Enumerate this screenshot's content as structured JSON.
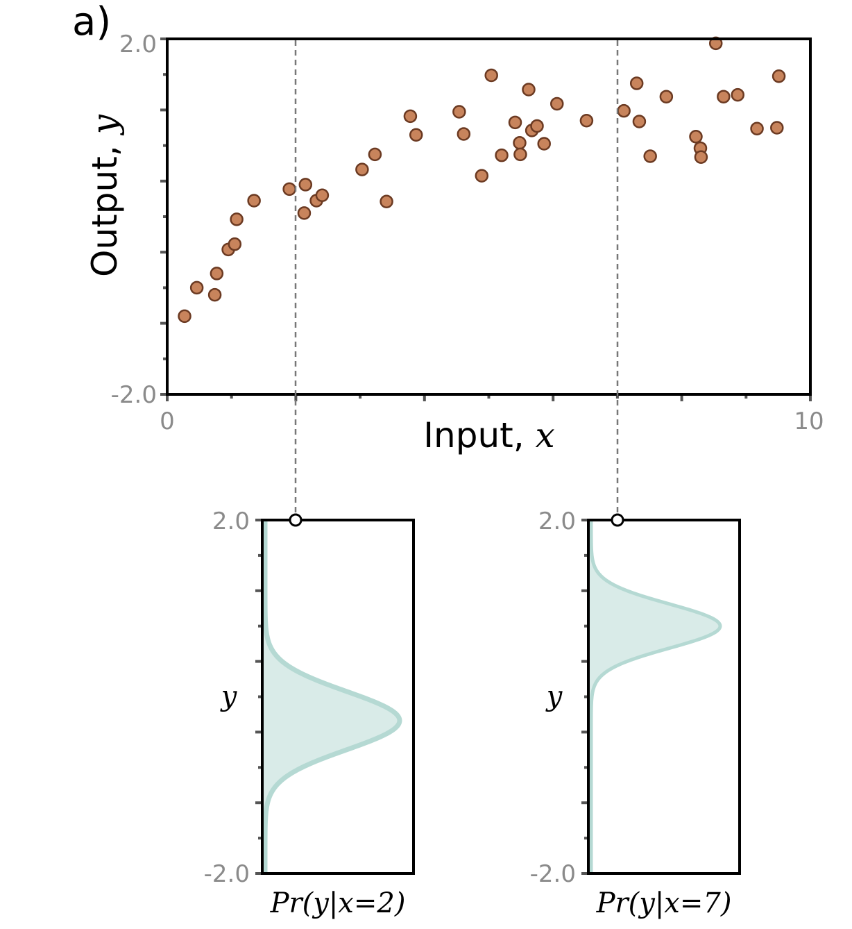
{
  "figure": {
    "panel_label": "a)",
    "main_plot": {
      "xlabel_text": "Input, ",
      "xlabel_var": "x",
      "ylabel_text": "Output, ",
      "ylabel_var": "y",
      "x_tick_min": "0",
      "x_tick_max": "10",
      "y_tick_max": "2.0",
      "y_tick_min": "-2.0"
    },
    "bottom_left": {
      "y_tick_max": "2.0",
      "y_tick_min": "-2.0",
      "ylabel": "y",
      "xlabel": "Pr(y|x=2)"
    },
    "bottom_right": {
      "y_tick_max": "2.0",
      "y_tick_min": "-2.0",
      "ylabel": "y",
      "xlabel": "Pr(y|x=7)"
    }
  },
  "chart_data": [
    {
      "type": "scatter",
      "xlabel": "Input, x",
      "ylabel": "Output, y",
      "xlim": [
        0,
        10
      ],
      "ylim": [
        -2.0,
        2.0
      ],
      "grid": false,
      "point_color": "#c8845c",
      "point_edge_color": "#6b3a22",
      "reference_lines_x": [
        2,
        7
      ],
      "points": [
        {
          "x": 0.27,
          "y": -1.12
        },
        {
          "x": 0.46,
          "y": -0.8
        },
        {
          "x": 0.74,
          "y": -0.88
        },
        {
          "x": 0.77,
          "y": -0.64
        },
        {
          "x": 0.95,
          "y": -0.37
        },
        {
          "x": 1.05,
          "y": -0.31
        },
        {
          "x": 1.08,
          "y": -0.03
        },
        {
          "x": 1.35,
          "y": 0.18
        },
        {
          "x": 1.9,
          "y": 0.31
        },
        {
          "x": 2.15,
          "y": 0.36
        },
        {
          "x": 2.13,
          "y": 0.04
        },
        {
          "x": 2.32,
          "y": 0.18
        },
        {
          "x": 2.41,
          "y": 0.24
        },
        {
          "x": 3.03,
          "y": 0.53
        },
        {
          "x": 3.23,
          "y": 0.7
        },
        {
          "x": 3.41,
          "y": 0.17
        },
        {
          "x": 3.78,
          "y": 1.13
        },
        {
          "x": 3.87,
          "y": 0.92
        },
        {
          "x": 4.54,
          "y": 1.18
        },
        {
          "x": 4.61,
          "y": 0.93
        },
        {
          "x": 4.89,
          "y": 0.46
        },
        {
          "x": 5.04,
          "y": 1.59
        },
        {
          "x": 5.2,
          "y": 0.69
        },
        {
          "x": 5.41,
          "y": 1.06
        },
        {
          "x": 5.48,
          "y": 0.83
        },
        {
          "x": 5.49,
          "y": 0.7
        },
        {
          "x": 5.62,
          "y": 1.43
        },
        {
          "x": 5.67,
          "y": 0.97
        },
        {
          "x": 5.75,
          "y": 1.02
        },
        {
          "x": 5.86,
          "y": 0.82
        },
        {
          "x": 6.06,
          "y": 1.27
        },
        {
          "x": 6.52,
          "y": 1.08
        },
        {
          "x": 7.1,
          "y": 1.19
        },
        {
          "x": 7.3,
          "y": 1.5
        },
        {
          "x": 7.34,
          "y": 1.07
        },
        {
          "x": 7.51,
          "y": 0.68
        },
        {
          "x": 7.76,
          "y": 1.35
        },
        {
          "x": 8.22,
          "y": 0.9
        },
        {
          "x": 8.29,
          "y": 0.77
        },
        {
          "x": 8.3,
          "y": 0.67
        },
        {
          "x": 8.53,
          "y": 1.95
        },
        {
          "x": 8.65,
          "y": 1.35
        },
        {
          "x": 8.87,
          "y": 1.37
        },
        {
          "x": 9.17,
          "y": 0.99
        },
        {
          "x": 9.48,
          "y": 1.0
        },
        {
          "x": 9.51,
          "y": 1.58
        }
      ]
    },
    {
      "type": "area",
      "xlabel": "Pr(y|x=2)",
      "ylabel": "y",
      "ylim": [
        -2.0,
        2.0
      ],
      "distribution": "normal",
      "mean": -0.27,
      "std": 0.33,
      "fill_color": "#d9ebe8",
      "line_color": "#b5d9d3"
    },
    {
      "type": "area",
      "xlabel": "Pr(y|x=7)",
      "ylabel": "y",
      "ylim": [
        -2.0,
        2.0
      ],
      "distribution": "normal",
      "mean": 0.8,
      "std": 0.25,
      "fill_color": "#d9ebe8",
      "line_color": "#b5d9d3"
    }
  ]
}
